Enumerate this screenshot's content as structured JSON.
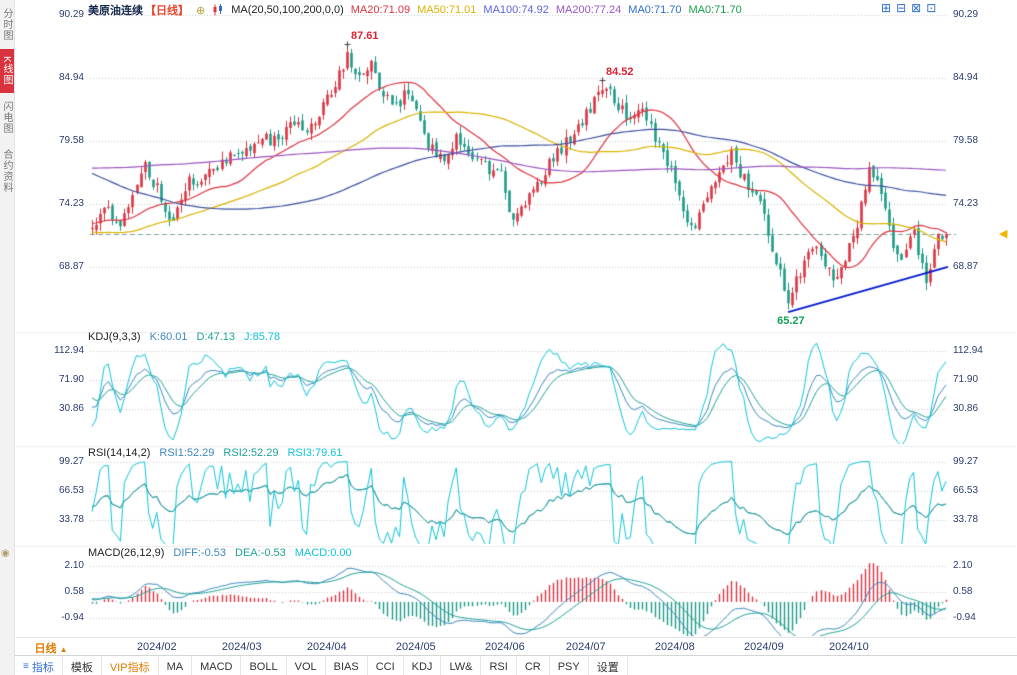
{
  "colors": {
    "up": "#dd3441",
    "down": "#1e9b88",
    "ma20": "#dd3441",
    "ma50": "#d9b300",
    "ma100": "#3c4f9e",
    "ma200": "#9a55c0",
    "line1": "#3d88c0",
    "line2": "#1fa396",
    "line3": "#10c3d8",
    "axis_text": "#2b3c6e",
    "grid": "#c8c8c8",
    "trend": "#0018cc",
    "dashed": "#7aa79b",
    "annotation_high": "#dd2233",
    "annotation_low": "#11a05a",
    "marker": "#f0b400"
  },
  "sidebar": {
    "gear_glyph": "◉",
    "items": [
      {
        "label": "分时图",
        "active": false
      },
      {
        "label": "K线图",
        "active": true
      },
      {
        "label": "闪电图",
        "active": false
      },
      {
        "label": "合约资料",
        "active": false
      }
    ]
  },
  "header": {
    "title": "美原油连续",
    "period_tag": "【日线】",
    "circle_icon_glyph": "⊕",
    "ma_group": "MA(20,50,100,200,0,0)",
    "ma_values": [
      {
        "label": "MA20:71.09",
        "color": "#dd3441"
      },
      {
        "label": "MA50:71.01",
        "color": "#d9b300"
      },
      {
        "label": "MA100:74.92",
        "color": "#5b63d8"
      },
      {
        "label": "MA200:77.24",
        "color": "#9a55c0"
      },
      {
        "label": "MA0:71.70",
        "color": "#2f6fd0"
      },
      {
        "label": "MA0:71.70",
        "color": "#18a04d"
      }
    ],
    "layout_icons": [
      {
        "name": "grid-layout-icon",
        "glyph": "⊞"
      },
      {
        "name": "horizontal-split-icon",
        "glyph": "⊟"
      },
      {
        "name": "vertical-split-icon",
        "glyph": "⊠"
      },
      {
        "name": "maximize-layout-icon",
        "glyph": "⊡"
      }
    ]
  },
  "panels": {
    "kdj": {
      "title": "KDJ(9,3,3)",
      "values": [
        {
          "label": "K:60.01",
          "color": "#3d88c0"
        },
        {
          "label": "D:47.13",
          "color": "#1fa396"
        },
        {
          "label": "J:85.78",
          "color": "#10c3d8"
        }
      ]
    },
    "rsi": {
      "title": "RSI(14,14,2)",
      "values": [
        {
          "label": "RSI1:52.29",
          "color": "#3d88c0"
        },
        {
          "label": "RSI2:52.29",
          "color": "#1fa396"
        },
        {
          "label": "RSI3:79.61",
          "color": "#10c3d8"
        }
      ]
    },
    "macd": {
      "title": "MACD(26,12,9)",
      "values": [
        {
          "label": "DIFF:-0.53",
          "color": "#3d88c0"
        },
        {
          "label": "DEA:-0.53",
          "color": "#1fa396"
        },
        {
          "label": "MACD:0.00",
          "color": "#10c3d8"
        }
      ]
    }
  },
  "xaxis": {
    "period_label": "日线",
    "period_arrow": "▲"
  },
  "toolbar": {
    "items": [
      {
        "label": "指标",
        "icon": "≡",
        "accent": "blue"
      },
      {
        "label": "模板",
        "accent": ""
      },
      {
        "label": "VIP指标",
        "accent": "orange"
      },
      {
        "label": "MA",
        "accent": ""
      },
      {
        "label": "MACD",
        "accent": ""
      },
      {
        "label": "BOLL",
        "accent": ""
      },
      {
        "label": "VOL",
        "accent": ""
      },
      {
        "label": "BIAS",
        "accent": ""
      },
      {
        "label": "CCI",
        "accent": ""
      },
      {
        "label": "KDJ",
        "accent": ""
      },
      {
        "label": "LW&",
        "accent": ""
      },
      {
        "label": "RSI",
        "accent": ""
      },
      {
        "label": "CR",
        "accent": ""
      },
      {
        "label": "PSY",
        "accent": ""
      },
      {
        "label": "设置",
        "accent": ""
      }
    ]
  },
  "chart_data": {
    "type": "candlestick",
    "symbol": "美原油连续",
    "period": "日线",
    "current_price": 71.7,
    "price_marker_glyph": "◀",
    "price_axis": [
      90.29,
      84.94,
      79.58,
      74.23,
      68.87
    ],
    "kdj_axis": [
      112.94,
      71.9,
      30.86
    ],
    "rsi_axis": [
      99.27,
      66.53,
      33.78
    ],
    "macd_axis": [
      2.1,
      0.58,
      -0.94
    ],
    "months": [
      {
        "label": "2024/02",
        "i": 16
      },
      {
        "label": "2024/03",
        "i": 37
      },
      {
        "label": "2024/04",
        "i": 58
      },
      {
        "label": "2024/05",
        "i": 80
      },
      {
        "label": "2024/06",
        "i": 102
      },
      {
        "label": "2024/07",
        "i": 122
      },
      {
        "label": "2024/08",
        "i": 144
      },
      {
        "label": "2024/09",
        "i": 166
      },
      {
        "label": "2024/10",
        "i": 187
      }
    ],
    "candle_count": 212,
    "annotations": [
      {
        "label": "87.61",
        "i": 63,
        "value": 87.61,
        "kind": "high"
      },
      {
        "label": "84.52",
        "i": 126,
        "value": 84.52,
        "kind": "high"
      },
      {
        "label": "65.27",
        "i": 172,
        "value": 65.27,
        "kind": "low"
      }
    ],
    "trendline": {
      "from_i": 172,
      "from_value": 65.05,
      "to_i": 213,
      "to_value": 68.9
    },
    "indicators": {
      "ma_periods": [
        20,
        50,
        100,
        200
      ],
      "kdj": [
        9,
        3,
        3
      ],
      "rsi": [
        14,
        14,
        2
      ],
      "macd": [
        26,
        12,
        9
      ],
      "last": {
        "ma20": 71.09,
        "ma50": 71.01,
        "ma100": 74.92,
        "ma200": 77.24,
        "k": 60.01,
        "d": 47.13,
        "j": 85.78,
        "rsi1": 52.29,
        "rsi2": 52.29,
        "rsi3": 79.61,
        "diff": -0.53,
        "dea": -0.53,
        "macd": 0.0
      }
    },
    "waypoints": [
      [
        0,
        72.0
      ],
      [
        3,
        74.0
      ],
      [
        7,
        72.2
      ],
      [
        13,
        77.4
      ],
      [
        16,
        75.6
      ],
      [
        19,
        72.6
      ],
      [
        24,
        76.2
      ],
      [
        28,
        76.4
      ],
      [
        33,
        78.2
      ],
      [
        37,
        78.6
      ],
      [
        42,
        80.0
      ],
      [
        46,
        79.3
      ],
      [
        50,
        81.3
      ],
      [
        54,
        80.7
      ],
      [
        58,
        83.0
      ],
      [
        61,
        85.3
      ],
      [
        63,
        86.8
      ],
      [
        66,
        85.2
      ],
      [
        69,
        86.3
      ],
      [
        72,
        83.4
      ],
      [
        75,
        82.6
      ],
      [
        78,
        83.8
      ],
      [
        80,
        81.9
      ],
      [
        83,
        78.9
      ],
      [
        87,
        78.3
      ],
      [
        90,
        79.8
      ],
      [
        94,
        78.0
      ],
      [
        98,
        77.2
      ],
      [
        101,
        76.9
      ],
      [
        103,
        73.5
      ],
      [
        105,
        73.0
      ],
      [
        109,
        75.3
      ],
      [
        113,
        77.7
      ],
      [
        117,
        79.4
      ],
      [
        121,
        81.3
      ],
      [
        124,
        83.0
      ],
      [
        126,
        84.1
      ],
      [
        129,
        83.2
      ],
      [
        133,
        81.0
      ],
      [
        136,
        82.6
      ],
      [
        139,
        79.9
      ],
      [
        142,
        78.0
      ],
      [
        144,
        76.0
      ],
      [
        147,
        72.9
      ],
      [
        149,
        72.4
      ],
      [
        152,
        75.0
      ],
      [
        155,
        76.8
      ],
      [
        158,
        78.5
      ],
      [
        161,
        76.3
      ],
      [
        164,
        74.8
      ],
      [
        166,
        73.9
      ],
      [
        168,
        70.2
      ],
      [
        170,
        68.4
      ],
      [
        172,
        66.2
      ],
      [
        175,
        68.5
      ],
      [
        178,
        70.9
      ],
      [
        181,
        69.0
      ],
      [
        183,
        67.8
      ],
      [
        186,
        69.4
      ],
      [
        188,
        71.4
      ],
      [
        190,
        73.9
      ],
      [
        192,
        76.9
      ],
      [
        195,
        75.2
      ],
      [
        198,
        70.8
      ],
      [
        200,
        69.8
      ],
      [
        203,
        71.8
      ],
      [
        206,
        67.5
      ],
      [
        208,
        70.9
      ],
      [
        211,
        71.7
      ]
    ],
    "prehistory": [
      [
        -230,
        76.0
      ],
      [
        -205,
        73.5
      ],
      [
        -185,
        70.5
      ],
      [
        -165,
        71.5
      ],
      [
        -145,
        77.0
      ],
      [
        -125,
        83.0
      ],
      [
        -105,
        90.5
      ],
      [
        -92,
        88.0
      ],
      [
        -76,
        81.5
      ],
      [
        -60,
        77.5
      ],
      [
        -45,
        73.0
      ],
      [
        -30,
        69.5
      ],
      [
        -15,
        72.5
      ],
      [
        -5,
        73.3
      ]
    ]
  }
}
